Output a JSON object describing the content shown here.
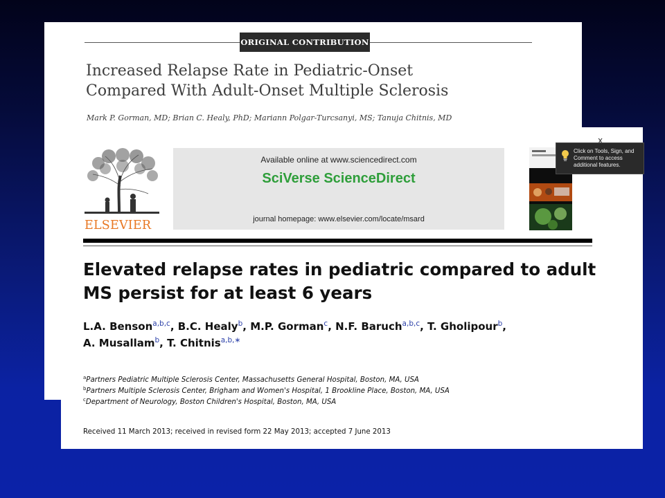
{
  "back_article": {
    "badge": "ORIGINAL CONTRIBUTION",
    "title_line1": "Increased Relapse Rate in Pediatric-Onset",
    "title_line2": "Compared With Adult-Onset Multiple Sclerosis",
    "authors": "Mark P. Gorman, MD; Brian C. Healy, PhD; Mariann Polgar-Turcsanyi, MS; Tanuja Chitnis, MD"
  },
  "front_article": {
    "publisher_logo": "ELSEVIER",
    "available_online": "Available online at www.sciencedirect.com",
    "brand": "SciVerse ScienceDirect",
    "journal_homepage": "journal homepage: www.elsevier.com/locate/msard",
    "title_line1": "Elevated relapse rates in pediatric compared to adult",
    "title_line2": "MS persist for at least 6 years",
    "authors": [
      {
        "name": "L.A. Benson",
        "sup": "a,b,c",
        "sep": ", "
      },
      {
        "name": "B.C. Healy",
        "sup": "b",
        "sep": ", "
      },
      {
        "name": "M.P. Gorman",
        "sup": "c",
        "sep": ", "
      },
      {
        "name": "N.F. Baruch",
        "sup": "a,b,c",
        "sep": ", "
      },
      {
        "name": "T. Gholipour",
        "sup": "b",
        "sep": ","
      },
      {
        "name": "A. Musallam",
        "sup": "b",
        "sep": ", "
      },
      {
        "name": "T. Chitnis",
        "sup": "a,b,∗",
        "sep": ""
      }
    ],
    "affiliations": [
      {
        "mark": "a",
        "text": "Partners Pediatric Multiple Sclerosis Center, Massachusetts General Hospital, Boston, MA, USA"
      },
      {
        "mark": "b",
        "text": "Partners Multiple Sclerosis Center, Brigham and Women's Hospital, 1 Brookline Place, Boston, MA, USA"
      },
      {
        "mark": "c",
        "text": "Department of Neurology, Boston Children's Hospital, Boston, MA, USA"
      }
    ],
    "received": "Received 11 March 2013; received in revised form 22 May 2013; accepted 7 June 2013"
  },
  "tooltip": {
    "line1": "Click on Tools, Sign, and",
    "line2": "Comment to access",
    "line3": "additional features.",
    "icon": "lightbulb-icon",
    "close": "x"
  },
  "colors": {
    "elsevier_orange": "#e87722",
    "sciencedirect_green": "#2e9e3a",
    "superscript_blue": "#2a3fa8"
  }
}
